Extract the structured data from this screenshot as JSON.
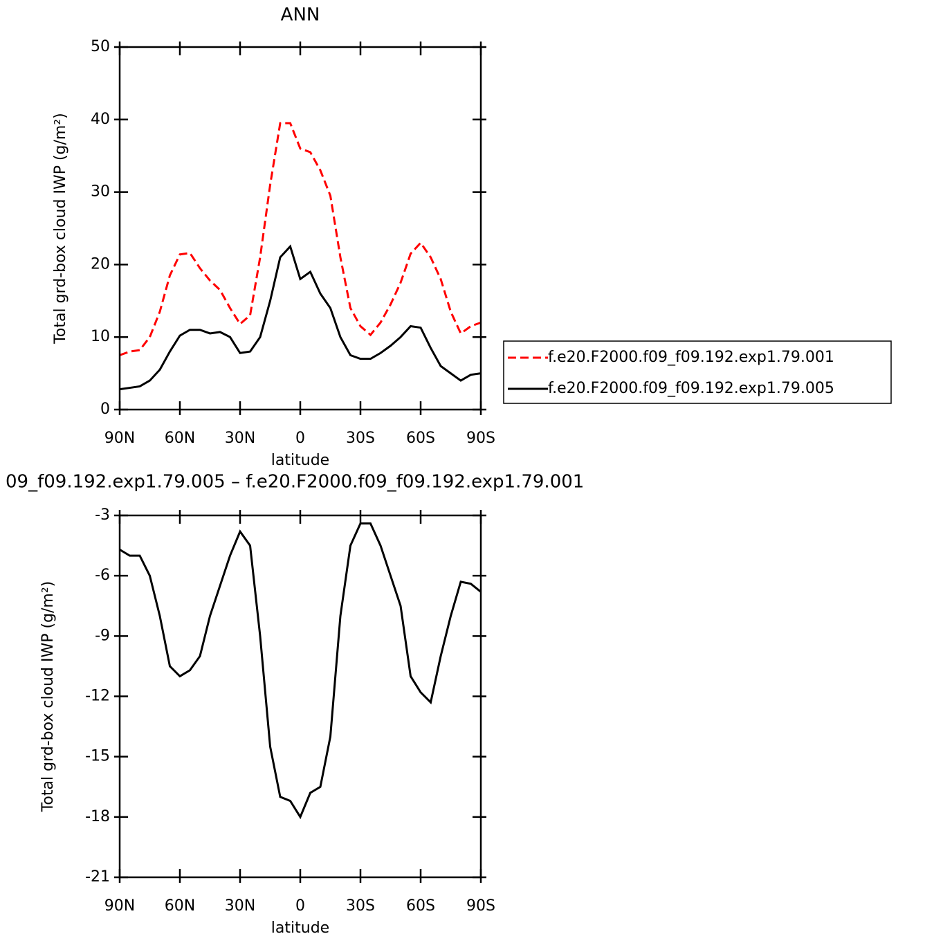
{
  "chart_data": [
    {
      "type": "line",
      "title": "ANN",
      "xlabel": "latitude",
      "ylabel": "Total grd-box cloud IWP (g/m²)",
      "x": [
        90,
        85,
        80,
        75,
        70,
        65,
        60,
        55,
        50,
        45,
        40,
        35,
        30,
        25,
        20,
        15,
        10,
        5,
        0,
        -5,
        -10,
        -15,
        -20,
        -25,
        -30,
        -35,
        -40,
        -45,
        -50,
        -55,
        -60,
        -65,
        -70,
        -75,
        -80,
        -85,
        -90
      ],
      "xlim": [
        90,
        -90
      ],
      "xticks": [
        {
          "value": 90,
          "label": "90N"
        },
        {
          "value": 60,
          "label": "60N"
        },
        {
          "value": 30,
          "label": "30N"
        },
        0,
        {
          "value": -30,
          "label": "30S"
        },
        {
          "value": -60,
          "label": "60S"
        },
        {
          "value": -90,
          "label": "90S"
        }
      ],
      "ylim": [
        0,
        50
      ],
      "yticks": [
        0,
        10,
        20,
        30,
        40,
        50
      ],
      "legend_position": "right",
      "series": [
        {
          "name": "f.e20.F2000.f09_f09.192.exp1.79.001",
          "color": "#ff0000",
          "line_style": "dashed",
          "values": [
            7.5,
            8,
            8.2,
            10,
            13.5,
            18.5,
            21.4,
            21.6,
            19.5,
            17.8,
            16.5,
            14,
            11.8,
            13,
            21,
            31,
            39.5,
            39.5,
            36,
            35.5,
            33,
            29.5,
            21,
            14,
            11.5,
            10.3,
            12,
            14.5,
            17.5,
            21.5,
            23,
            21,
            18,
            13.5,
            10.5,
            11.5,
            12
          ]
        },
        {
          "name": "f.e20.F2000.f09_f09.192.exp1.79.005",
          "color": "#000000",
          "line_style": "solid",
          "values": [
            2.8,
            3,
            3.2,
            4,
            5.5,
            8,
            10.2,
            11,
            11,
            10.5,
            10.7,
            10,
            7.8,
            8,
            10,
            15,
            21,
            22.5,
            18,
            19,
            16,
            14,
            10,
            7.5,
            7,
            7,
            7.8,
            8.8,
            10,
            11.5,
            11.3,
            8.5,
            6,
            5,
            4,
            4.8,
            5
          ]
        }
      ]
    },
    {
      "type": "line",
      "title": "09_f09.192.exp1.79.005 – f.e20.F2000.f09_f09.192.exp1.79.001",
      "xlabel": "latitude",
      "ylabel": "Total grd-box cloud IWP (g/m²)",
      "x": [
        90,
        85,
        80,
        75,
        70,
        65,
        60,
        55,
        50,
        45,
        40,
        35,
        30,
        25,
        20,
        15,
        10,
        5,
        0,
        -5,
        -10,
        -15,
        -20,
        -25,
        -30,
        -35,
        -40,
        -45,
        -50,
        -55,
        -60,
        -65,
        -70,
        -75,
        -80,
        -85,
        -90
      ],
      "xlim": [
        90,
        -90
      ],
      "xticks": [
        {
          "value": 90,
          "label": "90N"
        },
        {
          "value": 60,
          "label": "60N"
        },
        {
          "value": 30,
          "label": "30N"
        },
        0,
        {
          "value": -30,
          "label": "30S"
        },
        {
          "value": -60,
          "label": "60S"
        },
        {
          "value": -90,
          "label": "90S"
        }
      ],
      "ylim": [
        -21,
        -3
      ],
      "yticks": [
        -21,
        -18,
        -15,
        -12,
        -9,
        -6,
        -3
      ],
      "series": [
        {
          "color": "#000000",
          "line_style": "solid",
          "values": [
            -4.7,
            -5,
            -5,
            -6,
            -8,
            -10.5,
            -11,
            -10.7,
            -10,
            -8,
            -6.5,
            -5,
            -3.8,
            -4.5,
            -9,
            -14.5,
            -17,
            -17.2,
            -18,
            -16.8,
            -16.5,
            -14,
            -8,
            -4.5,
            -3.4,
            -3.4,
            -4.5,
            -6,
            -7.5,
            -11,
            -11.8,
            -12.3,
            -10,
            -8,
            -6.3,
            -6.4,
            -6.8
          ]
        }
      ]
    }
  ]
}
